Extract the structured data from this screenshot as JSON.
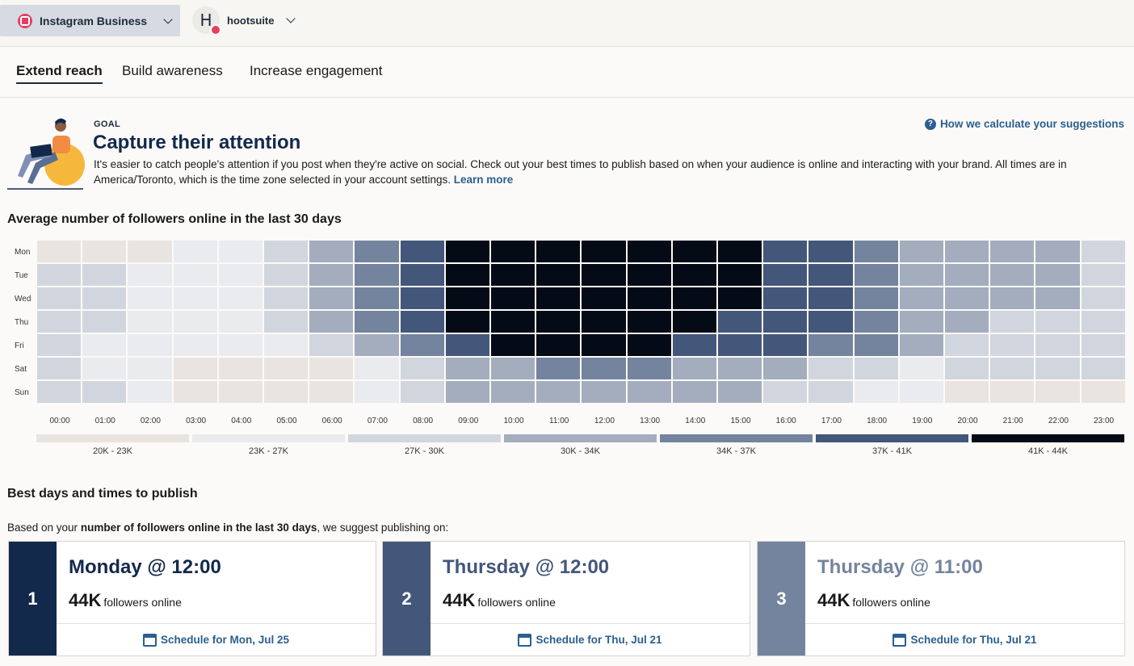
{
  "header": {
    "account_select": "Instagram Business",
    "profile_initial": "H",
    "profile_name": "hootsuite"
  },
  "tabs": [
    "Extend reach",
    "Build awareness",
    "Increase engagement"
  ],
  "goal": {
    "kicker": "GOAL",
    "title": "Capture their attention",
    "description": "It's easier to catch people's attention if you post when they're active on social. Check out your best times to publish based on when your audience is online and interacting with your brand. All times are in America/Toronto, which is the time zone selected in your account settings.",
    "learn_more": "Learn more",
    "how_calc": "How we calculate your suggestions"
  },
  "heatmap_title": "Average number of followers online in the last 30 days",
  "chart_data": {
    "type": "heatmap",
    "days": [
      "Mon",
      "Tue",
      "Wed",
      "Thu",
      "Fri",
      "Sat",
      "Sun"
    ],
    "hours": [
      "00:00",
      "01:00",
      "02:00",
      "03:00",
      "04:00",
      "05:00",
      "06:00",
      "07:00",
      "08:00",
      "09:00",
      "10:00",
      "11:00",
      "12:00",
      "13:00",
      "14:00",
      "15:00",
      "16:00",
      "17:00",
      "18:00",
      "19:00",
      "20:00",
      "21:00",
      "22:00",
      "23:00"
    ],
    "bins": [
      "20K - 23K",
      "23K - 27K",
      "27K - 30K",
      "30K - 34K",
      "34K - 37K",
      "37K - 41K",
      "41K - 44K"
    ],
    "bin_colors": [
      "#e9e4df",
      "#eaebee",
      "#d1d6de",
      "#a3adbe",
      "#74849e",
      "#43577a",
      "#050a17"
    ],
    "levels": [
      [
        0,
        0,
        0,
        1,
        1,
        2,
        3,
        4,
        5,
        6,
        6,
        6,
        6,
        6,
        6,
        6,
        5,
        5,
        4,
        3,
        3,
        3,
        3,
        2
      ],
      [
        2,
        2,
        1,
        1,
        1,
        2,
        3,
        4,
        5,
        6,
        6,
        6,
        6,
        6,
        6,
        6,
        5,
        5,
        4,
        3,
        3,
        3,
        3,
        2
      ],
      [
        2,
        2,
        1,
        1,
        1,
        2,
        3,
        4,
        5,
        6,
        6,
        6,
        6,
        6,
        6,
        6,
        5,
        5,
        4,
        3,
        3,
        3,
        3,
        2
      ],
      [
        2,
        2,
        1,
        1,
        1,
        2,
        3,
        4,
        5,
        6,
        6,
        6,
        6,
        6,
        6,
        5,
        5,
        5,
        4,
        3,
        3,
        2,
        2,
        2
      ],
      [
        2,
        1,
        1,
        1,
        1,
        1,
        2,
        3,
        4,
        5,
        6,
        6,
        6,
        6,
        5,
        5,
        5,
        4,
        4,
        3,
        2,
        2,
        2,
        2
      ],
      [
        2,
        1,
        1,
        0,
        0,
        0,
        0,
        1,
        2,
        3,
        3,
        4,
        4,
        4,
        3,
        3,
        3,
        2,
        2,
        1,
        2,
        2,
        2,
        2
      ],
      [
        2,
        2,
        1,
        0,
        0,
        0,
        0,
        1,
        2,
        3,
        3,
        3,
        3,
        3,
        3,
        3,
        2,
        2,
        1,
        1,
        0,
        0,
        0,
        0
      ]
    ]
  },
  "best": {
    "title": "Best days and times to publish",
    "intro_prefix": "Based on your",
    "intro_bold": "number of followers online in the last 30 days",
    "intro_suffix": ", we suggest publishing on:",
    "cards": [
      {
        "rank": "1",
        "title": "Monday @ 12:00",
        "count": "44K",
        "count_label": "followers online",
        "schedule": "Schedule for Mon, Jul 25",
        "rank_color": "#13294b",
        "title_color": "#13294b"
      },
      {
        "rank": "2",
        "title": "Thursday @ 12:00",
        "count": "44K",
        "count_label": "followers online",
        "schedule": "Schedule for Thu, Jul 21",
        "rank_color": "#43577a",
        "title_color": "#43577a"
      },
      {
        "rank": "3",
        "title": "Thursday @ 11:00",
        "count": "44K",
        "count_label": "followers online",
        "schedule": "Schedule for Thu, Jul 21",
        "rank_color": "#74849e",
        "title_color": "#74849e"
      }
    ]
  }
}
